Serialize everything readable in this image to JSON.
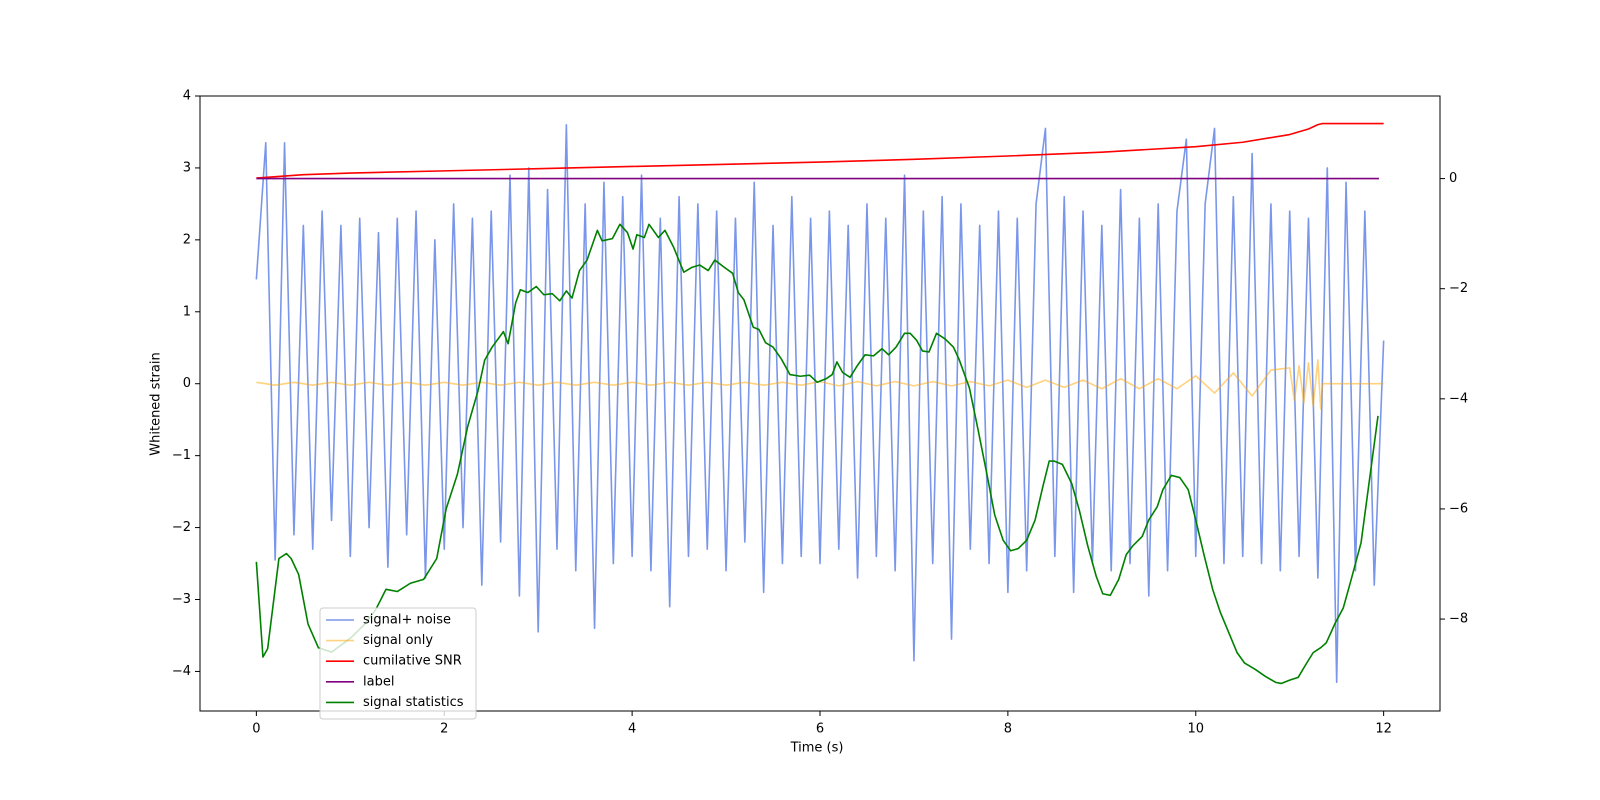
{
  "chart_data": {
    "type": "line",
    "xlabel": "Time (s)",
    "ylabel": "Whitened strain",
    "xlim": [
      -0.6,
      12.6
    ],
    "xticks": [
      0,
      2,
      4,
      6,
      8,
      10,
      12
    ],
    "ylim": [
      -4.55,
      4
    ],
    "yticks": [
      {
        "value": -4,
        "label": "−4"
      },
      {
        "value": -3,
        "label": "−3"
      },
      {
        "value": -2,
        "label": "−2"
      },
      {
        "value": -1,
        "label": "−1"
      },
      0,
      1,
      2,
      3,
      4
    ],
    "y2lim": [
      -9.67,
      1.5
    ],
    "y2ticks": [
      {
        "value": -8,
        "label": "−8"
      },
      {
        "value": -6,
        "label": "−6"
      },
      {
        "value": -4,
        "label": "−4"
      },
      {
        "value": -2,
        "label": "−2"
      },
      0
    ],
    "legend": "lower left",
    "grid": false,
    "series": [
      {
        "name": "signal+ noise",
        "color": "#4169e1",
        "alpha": 0.7,
        "x": [
          0,
          0.1,
          0.2,
          0.3,
          0.4,
          0.5,
          0.6,
          0.7,
          0.8,
          0.9,
          1,
          1.1,
          1.2,
          1.3,
          1.4,
          1.5,
          1.6,
          1.7,
          1.8,
          1.9,
          2,
          2.1,
          2.2,
          2.3,
          2.4,
          2.5,
          2.6,
          2.7,
          2.8,
          2.9,
          3,
          3.1,
          3.2,
          3.3,
          3.4,
          3.5,
          3.6,
          3.7,
          3.8,
          3.9,
          4,
          4.1,
          4.2,
          4.3,
          4.4,
          4.5,
          4.6,
          4.7,
          4.8,
          4.9,
          5,
          5.1,
          5.2,
          5.3,
          5.4,
          5.5,
          5.6,
          5.7,
          5.8,
          5.9,
          6,
          6.1,
          6.2,
          6.3,
          6.4,
          6.5,
          6.6,
          6.7,
          6.8,
          6.9,
          7,
          7.1,
          7.2,
          7.3,
          7.4,
          7.5,
          7.6,
          7.7,
          7.8,
          7.9,
          8,
          8.1,
          8.2,
          8.3,
          8.4,
          8.5,
          8.6,
          8.7,
          8.8,
          8.9,
          9,
          9.1,
          9.2,
          9.3,
          9.4,
          9.5,
          9.6,
          9.7,
          9.8,
          9.9,
          10,
          10.1,
          10.2,
          10.3,
          10.4,
          10.5,
          10.6,
          10.7,
          10.8,
          10.9,
          11,
          11.1,
          11.2,
          11.3,
          11.4,
          11.5,
          11.6,
          11.7,
          11.8,
          11.9,
          12
        ],
        "values": [
          1.45,
          3.35,
          -2.45,
          3.35,
          -2.1,
          2.2,
          -2.3,
          2.4,
          -1.9,
          2.2,
          -2.4,
          2.3,
          -2.0,
          2.1,
          -2.55,
          2.3,
          -2.1,
          2.4,
          -2.7,
          2.0,
          -2.3,
          2.5,
          -2.0,
          2.3,
          -2.8,
          2.4,
          -2.2,
          2.9,
          -2.95,
          3.0,
          -3.45,
          2.7,
          -2.3,
          3.6,
          -2.6,
          2.5,
          -3.4,
          2.8,
          -2.5,
          2.6,
          -2.4,
          2.9,
          -2.6,
          2.3,
          -3.1,
          2.6,
          -2.4,
          2.5,
          -2.3,
          2.4,
          -2.6,
          2.3,
          -2.2,
          2.8,
          -2.9,
          2.2,
          -2.5,
          2.6,
          -2.4,
          2.3,
          -2.5,
          2.4,
          -2.3,
          2.2,
          -2.7,
          2.5,
          -2.4,
          2.3,
          -2.6,
          2.9,
          -3.85,
          2.4,
          -2.5,
          2.6,
          -3.55,
          2.5,
          -2.3,
          2.2,
          -2.5,
          2.4,
          -2.9,
          2.3,
          -2.6,
          2.5,
          3.55,
          -2.4,
          2.6,
          -2.9,
          2.4,
          -2.5,
          2.2,
          -2.6,
          2.7,
          -2.5,
          2.3,
          -2.95,
          2.5,
          -2.6,
          2.4,
          3.4,
          -2.4,
          2.5,
          3.55,
          -2.5,
          2.6,
          -2.4,
          3.2,
          -2.5,
          2.5,
          -2.6,
          2.4,
          -2.4,
          2.3,
          -2.7,
          3.0,
          -4.15,
          2.8,
          -2.6,
          2.4,
          -2.8,
          0.6
        ]
      },
      {
        "name": "signal only",
        "color": "#ffa500",
        "alpha": 0.5,
        "x": [
          0,
          0.2,
          0.4,
          0.6,
          0.8,
          1,
          1.2,
          1.4,
          1.6,
          1.8,
          2,
          2.2,
          2.4,
          2.6,
          2.8,
          3,
          3.2,
          3.4,
          3.6,
          3.8,
          4,
          4.2,
          4.4,
          4.6,
          4.8,
          5,
          5.2,
          5.4,
          5.6,
          5.8,
          6,
          6.2,
          6.4,
          6.6,
          6.8,
          7,
          7.2,
          7.4,
          7.6,
          7.8,
          8,
          8.2,
          8.4,
          8.6,
          8.8,
          9,
          9.2,
          9.4,
          9.6,
          9.8,
          10,
          10.2,
          10.4,
          10.6,
          10.8,
          11,
          11.05,
          11.1,
          11.15,
          11.2,
          11.25,
          11.3,
          11.33,
          11.35,
          11.6,
          12
        ],
        "values": [
          0.02,
          -0.02,
          0.02,
          -0.02,
          0.02,
          -0.02,
          0.02,
          -0.02,
          0.02,
          -0.02,
          0.02,
          -0.02,
          0.02,
          -0.02,
          0.02,
          -0.02,
          0.02,
          -0.02,
          0.02,
          -0.02,
          0.02,
          -0.02,
          0.02,
          -0.02,
          0.02,
          -0.02,
          0.02,
          -0.02,
          0.02,
          -0.02,
          0.03,
          -0.03,
          0.03,
          -0.03,
          0.03,
          -0.03,
          0.03,
          -0.03,
          0.03,
          -0.03,
          0.05,
          -0.05,
          0.05,
          -0.05,
          0.05,
          -0.07,
          0.07,
          -0.07,
          0.07,
          -0.07,
          0.11,
          -0.13,
          0.15,
          -0.17,
          0.19,
          0.22,
          -0.23,
          0.25,
          -0.27,
          0.29,
          -0.31,
          0.33,
          -0.35,
          0,
          0,
          0
        ]
      },
      {
        "name": "cumilative SNR",
        "color": "#ff0000",
        "axis": "y2",
        "x": [
          0,
          0.5,
          1,
          2,
          3,
          4,
          5,
          6,
          7,
          8,
          9,
          10,
          10.5,
          11,
          11.2,
          11.3,
          11.35,
          12
        ],
        "values": [
          0.01,
          0.07,
          0.1,
          0.14,
          0.18,
          0.22,
          0.26,
          0.3,
          0.35,
          0.41,
          0.48,
          0.58,
          0.66,
          0.8,
          0.9,
          0.98,
          1.0,
          1.0
        ]
      },
      {
        "name": "label",
        "color": "#800080",
        "axis": "y2",
        "x": [
          0,
          11.95
        ],
        "values": [
          0,
          0
        ]
      },
      {
        "name": "signal statistics",
        "color": "#008000",
        "axis": "y2",
        "x": [
          0,
          0.07,
          0.12,
          0.24,
          0.32,
          0.37,
          0.45,
          0.55,
          0.66,
          0.8,
          1.0,
          1.15,
          1.27,
          1.38,
          1.5,
          1.64,
          1.78,
          1.92,
          2.02,
          2.14,
          2.25,
          2.36,
          2.43,
          2.51,
          2.63,
          2.68,
          2.76,
          2.81,
          2.89,
          2.98,
          3.06,
          3.15,
          3.23,
          3.3,
          3.36,
          3.44,
          3.52,
          3.63,
          3.68,
          3.79,
          3.87,
          3.95,
          4.01,
          4.05,
          4.13,
          4.18,
          4.28,
          4.35,
          4.44,
          4.55,
          4.64,
          4.72,
          4.81,
          4.88,
          4.98,
          5.07,
          5.13,
          5.19,
          5.29,
          5.35,
          5.42,
          5.5,
          5.59,
          5.68,
          5.79,
          5.89,
          5.97,
          6.07,
          6.13,
          6.18,
          6.24,
          6.32,
          6.4,
          6.48,
          6.57,
          6.66,
          6.73,
          6.81,
          6.9,
          6.96,
          7.03,
          7.09,
          7.16,
          7.24,
          7.33,
          7.42,
          7.48,
          7.59,
          7.68,
          7.77,
          7.86,
          7.95,
          8.03,
          8.11,
          8.2,
          8.29,
          8.37,
          8.44,
          8.49,
          8.58,
          8.68,
          8.76,
          8.85,
          8.94,
          9.01,
          9.09,
          9.18,
          9.26,
          9.33,
          9.43,
          9.5,
          9.59,
          9.65,
          9.74,
          9.83,
          9.92,
          10.0,
          10.09,
          10.18,
          10.26,
          10.35,
          10.44,
          10.52,
          10.63,
          10.74,
          10.85,
          10.91,
          11.0,
          11.09,
          11.17,
          11.25,
          11.33,
          11.39,
          11.48,
          11.57,
          11.65,
          11.76,
          11.85,
          11.94
        ],
        "values": [
          -6.96,
          -8.69,
          -8.54,
          -6.9,
          -6.81,
          -6.9,
          -7.19,
          -8.09,
          -8.52,
          -8.6,
          -8.35,
          -8.1,
          -7.83,
          -7.46,
          -7.5,
          -7.35,
          -7.28,
          -6.9,
          -6.0,
          -5.37,
          -4.5,
          -3.85,
          -3.3,
          -3.06,
          -2.78,
          -3.0,
          -2.26,
          -2.02,
          -2.07,
          -1.96,
          -2.11,
          -2.09,
          -2.22,
          -2.04,
          -2.17,
          -1.67,
          -1.48,
          -0.94,
          -1.13,
          -1.09,
          -0.83,
          -0.98,
          -1.28,
          -1.02,
          -1.07,
          -0.83,
          -1.07,
          -0.94,
          -1.24,
          -1.7,
          -1.61,
          -1.57,
          -1.67,
          -1.48,
          -1.61,
          -1.72,
          -2.07,
          -2.2,
          -2.7,
          -2.74,
          -2.98,
          -3.06,
          -3.28,
          -3.56,
          -3.59,
          -3.57,
          -3.7,
          -3.63,
          -3.56,
          -3.33,
          -3.52,
          -3.61,
          -3.39,
          -3.2,
          -3.22,
          -3.09,
          -3.2,
          -3.06,
          -2.81,
          -2.81,
          -2.94,
          -3.13,
          -3.15,
          -2.81,
          -2.91,
          -3.06,
          -3.28,
          -3.8,
          -4.54,
          -5.31,
          -6.11,
          -6.57,
          -6.76,
          -6.72,
          -6.57,
          -6.2,
          -5.61,
          -5.13,
          -5.13,
          -5.19,
          -5.54,
          -6.02,
          -6.67,
          -7.22,
          -7.54,
          -7.57,
          -7.28,
          -6.83,
          -6.67,
          -6.5,
          -6.2,
          -5.96,
          -5.65,
          -5.39,
          -5.43,
          -5.65,
          -6.2,
          -6.85,
          -7.46,
          -7.87,
          -8.24,
          -8.61,
          -8.8,
          -8.91,
          -9.04,
          -9.15,
          -9.17,
          -9.11,
          -9.06,
          -8.83,
          -8.61,
          -8.52,
          -8.43,
          -8.09,
          -7.8,
          -7.31,
          -6.61,
          -5.46,
          -4.31
        ]
      }
    ]
  }
}
